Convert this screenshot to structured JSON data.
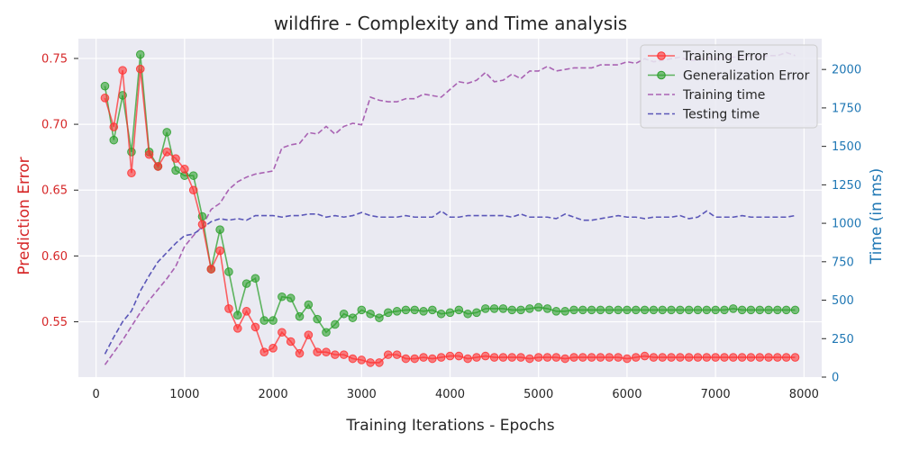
{
  "chart_data": {
    "type": "line",
    "title": "wildfire - Complexity and Time analysis",
    "xlabel": "Training Iterations - Epochs",
    "ylabel_left": "Prediction Error",
    "ylabel_right": "Time (in ms)",
    "xlim": [
      -200,
      8200
    ],
    "ylim_left": [
      0.508,
      0.765
    ],
    "ylim_right": [
      0,
      2200
    ],
    "xticks": [
      0,
      1000,
      2000,
      3000,
      4000,
      5000,
      6000,
      7000,
      8000
    ],
    "yticks_left": [
      0.55,
      0.6,
      0.65,
      0.7,
      0.75
    ],
    "yticks_left_labels": [
      "0.55",
      "0.60",
      "0.65",
      "0.70",
      "0.75"
    ],
    "yticks_right": [
      0,
      250,
      500,
      750,
      1000,
      1250,
      1500,
      1750,
      2000
    ],
    "grid": true,
    "legend_position": "top-right",
    "colors": {
      "left_axis": "#d62728",
      "right_axis": "#1f77b4",
      "plot_bg": "#eaeaf2",
      "grid": "#ffffff"
    },
    "x": [
      100,
      200,
      300,
      400,
      500,
      600,
      700,
      800,
      900,
      1000,
      1100,
      1200,
      1300,
      1400,
      1500,
      1600,
      1700,
      1800,
      1900,
      2000,
      2100,
      2200,
      2300,
      2400,
      2500,
      2600,
      2700,
      2800,
      2900,
      3000,
      3100,
      3200,
      3300,
      3400,
      3500,
      3600,
      3700,
      3800,
      3900,
      4000,
      4100,
      4200,
      4300,
      4400,
      4500,
      4600,
      4700,
      4800,
      4900,
      5000,
      5100,
      5200,
      5300,
      5400,
      5500,
      5600,
      5700,
      5800,
      5900,
      6000,
      6100,
      6200,
      6300,
      6400,
      6500,
      6600,
      6700,
      6800,
      6900,
      7000,
      7100,
      7200,
      7300,
      7400,
      7500,
      7600,
      7700,
      7800,
      7900
    ],
    "series": [
      {
        "name": "Training Error",
        "axis": "left",
        "style": "line-marker",
        "color": "#ff3030",
        "values": [
          0.72,
          0.698,
          0.741,
          0.663,
          0.742,
          0.677,
          0.668,
          0.679,
          0.674,
          0.666,
          0.65,
          0.624,
          0.59,
          0.604,
          0.56,
          0.545,
          0.558,
          0.546,
          0.527,
          0.53,
          0.542,
          0.535,
          0.526,
          0.54,
          0.527,
          0.527,
          0.525,
          0.525,
          0.522,
          0.521,
          0.519,
          0.519,
          0.525,
          0.525,
          0.522,
          0.522,
          0.523,
          0.522,
          0.523,
          0.524,
          0.524,
          0.522,
          0.523,
          0.524,
          0.523,
          0.523,
          0.523,
          0.523,
          0.522,
          0.523,
          0.523,
          0.523,
          0.522,
          0.523,
          0.523,
          0.523,
          0.523,
          0.523,
          0.523,
          0.522,
          0.523,
          0.524,
          0.523,
          0.523,
          0.523,
          0.523,
          0.523,
          0.523,
          0.523,
          0.523,
          0.523,
          0.523,
          0.523,
          0.523,
          0.523,
          0.523,
          0.523,
          0.523,
          0.523
        ]
      },
      {
        "name": "Generalization Error",
        "axis": "left",
        "style": "line-marker",
        "color": "#2ca02c",
        "values": [
          0.729,
          0.688,
          0.722,
          0.679,
          0.753,
          0.679,
          0.668,
          0.694,
          0.665,
          0.661,
          0.661,
          0.63,
          0.59,
          0.62,
          0.588,
          0.555,
          0.579,
          0.583,
          0.551,
          0.551,
          0.569,
          0.568,
          0.554,
          0.563,
          0.552,
          0.542,
          0.548,
          0.556,
          0.553,
          0.559,
          0.556,
          0.553,
          0.557,
          0.558,
          0.559,
          0.559,
          0.558,
          0.559,
          0.556,
          0.557,
          0.559,
          0.556,
          0.557,
          0.56,
          0.56,
          0.56,
          0.559,
          0.559,
          0.56,
          0.561,
          0.56,
          0.558,
          0.558,
          0.559,
          0.559,
          0.559,
          0.559,
          0.559,
          0.559,
          0.559,
          0.559,
          0.559,
          0.559,
          0.559,
          0.559,
          0.559,
          0.559,
          0.559,
          0.559,
          0.559,
          0.559,
          0.56,
          0.559,
          0.559,
          0.559,
          0.559,
          0.559,
          0.559,
          0.559
        ]
      },
      {
        "name": "Training time",
        "axis": "right",
        "style": "dashed",
        "color": "#a963b3",
        "values": [
          80,
          160,
          240,
          330,
          420,
          500,
          570,
          640,
          720,
          850,
          920,
          980,
          1090,
          1130,
          1220,
          1270,
          1300,
          1320,
          1330,
          1340,
          1490,
          1510,
          1520,
          1590,
          1580,
          1630,
          1580,
          1630,
          1650,
          1640,
          1820,
          1800,
          1790,
          1790,
          1810,
          1810,
          1840,
          1830,
          1820,
          1870,
          1920,
          1910,
          1930,
          1980,
          1920,
          1930,
          1970,
          1940,
          1990,
          1990,
          2020,
          1990,
          2000,
          2010,
          2010,
          2010,
          2030,
          2030,
          2030,
          2050,
          2040,
          2070,
          2050,
          2060,
          2070,
          2080,
          2060,
          2060,
          2080,
          2070,
          2080,
          2080,
          2080,
          2090,
          2080,
          2090,
          2090,
          2110,
          2090
        ]
      },
      {
        "name": "Testing time",
        "axis": "right",
        "style": "dashed",
        "color": "#5b57b8",
        "values": [
          150,
          260,
          360,
          430,
          560,
          660,
          750,
          810,
          870,
          920,
          930,
          970,
          1010,
          1030,
          1020,
          1030,
          1020,
          1050,
          1050,
          1050,
          1040,
          1050,
          1050,
          1060,
          1060,
          1040,
          1050,
          1040,
          1050,
          1070,
          1050,
          1040,
          1040,
          1040,
          1050,
          1040,
          1040,
          1040,
          1080,
          1040,
          1040,
          1050,
          1050,
          1050,
          1050,
          1050,
          1040,
          1060,
          1040,
          1040,
          1040,
          1030,
          1060,
          1040,
          1020,
          1020,
          1030,
          1040,
          1050,
          1040,
          1040,
          1030,
          1040,
          1040,
          1040,
          1050,
          1030,
          1040,
          1080,
          1040,
          1040,
          1040,
          1050,
          1040,
          1040,
          1040,
          1040,
          1040,
          1050
        ]
      }
    ]
  }
}
